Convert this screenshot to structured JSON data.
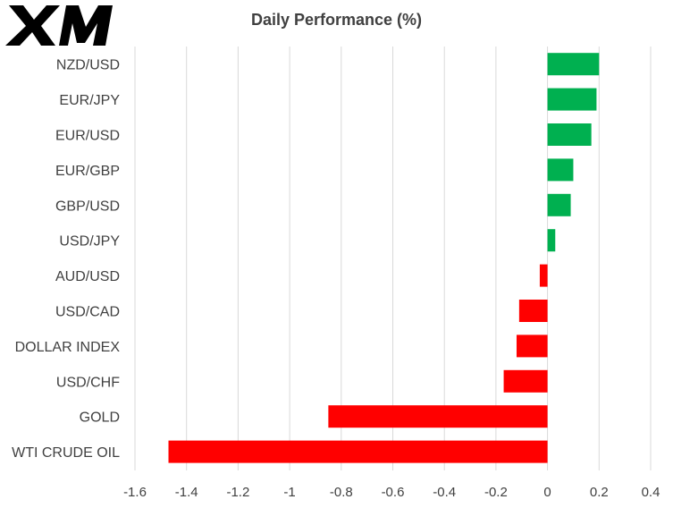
{
  "brand": {
    "logo_text": "XM",
    "logo_color": "#000000",
    "logo_accent": "#d40000"
  },
  "chart_data": {
    "type": "bar",
    "orientation": "horizontal",
    "title": "Daily Performance  (%)",
    "categories": [
      "NZD/USD",
      "EUR/JPY",
      "EUR/USD",
      "EUR/GBP",
      "GBP/USD",
      "USD/JPY",
      "AUD/USD",
      "USD/CAD",
      "DOLLAR INDEX",
      "USD/CHF",
      "GOLD",
      "WTI CRUDE OIL"
    ],
    "values": [
      0.2,
      0.19,
      0.17,
      0.1,
      0.09,
      0.03,
      -0.03,
      -0.11,
      -0.12,
      -0.17,
      -0.85,
      -1.47
    ],
    "xlim": [
      -1.6,
      0.4
    ],
    "xticks": [
      -1.6,
      -1.4,
      -1.2,
      -1,
      -0.8,
      -0.6,
      -0.4,
      -0.2,
      0,
      0.2,
      0.4
    ],
    "xtick_labels": [
      "-1.6",
      "-1.4",
      "-1.2",
      "-1",
      "-0.8",
      "-0.6",
      "-0.4",
      "-0.2",
      "0",
      "0.2",
      "0.4"
    ],
    "grid": "vertical",
    "legend": "none",
    "positive_color": "#00b050",
    "negative_color": "#ff0000",
    "gridline_color": "#d9d9d9",
    "text_color": "#404040"
  }
}
